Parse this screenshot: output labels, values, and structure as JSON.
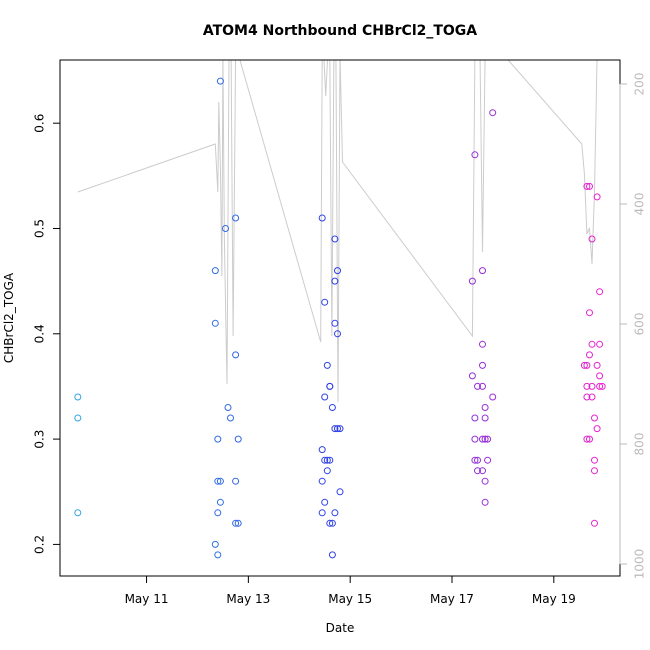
{
  "chart_data": {
    "type": "scatter",
    "title": "ATOM4 Northbound CHBrCl2_TOGA",
    "xlabel": "Date",
    "ylabel": "CHBrCl2_TOGA",
    "x_unit": "day of May",
    "xlim": [
      9.3,
      20.3
    ],
    "ylim": [
      0.17,
      0.66
    ],
    "x_ticks": [
      {
        "value": 11,
        "label": "May 11"
      },
      {
        "value": 13,
        "label": "May 13"
      },
      {
        "value": 15,
        "label": "May 15"
      },
      {
        "value": 17,
        "label": "May 17"
      },
      {
        "value": 19,
        "label": "May 19"
      }
    ],
    "y_ticks": [
      0.2,
      0.3,
      0.4,
      0.5,
      0.6
    ],
    "y_tick_labels": [
      "0.2",
      "0.3",
      "0.4",
      "0.5",
      "0.6"
    ],
    "right_axis": {
      "label_color": "#bbbbbb",
      "reversed": true,
      "ylim": [
        1020,
        160
      ],
      "ticks": [
        200,
        400,
        600,
        800,
        1000
      ],
      "tick_labels": [
        "200",
        "400",
        "600",
        "800",
        "1000"
      ]
    },
    "colors": {
      "early": "#33a6e0",
      "mid": "#2f3ee6",
      "late": "#ee22cc",
      "secondary_line": "#cccccc",
      "axis": "#000000"
    },
    "points": [
      {
        "x": 9.65,
        "y": 0.34
      },
      {
        "x": 9.65,
        "y": 0.32
      },
      {
        "x": 9.65,
        "y": 0.23
      },
      {
        "x": 12.45,
        "y": 0.64
      },
      {
        "x": 12.35,
        "y": 0.46
      },
      {
        "x": 12.35,
        "y": 0.41
      },
      {
        "x": 12.55,
        "y": 0.5
      },
      {
        "x": 12.75,
        "y": 0.51
      },
      {
        "x": 12.75,
        "y": 0.38
      },
      {
        "x": 12.6,
        "y": 0.33
      },
      {
        "x": 12.65,
        "y": 0.32
      },
      {
        "x": 12.4,
        "y": 0.3
      },
      {
        "x": 12.8,
        "y": 0.3
      },
      {
        "x": 12.4,
        "y": 0.26
      },
      {
        "x": 12.45,
        "y": 0.26
      },
      {
        "x": 12.75,
        "y": 0.26
      },
      {
        "x": 12.45,
        "y": 0.24
      },
      {
        "x": 12.4,
        "y": 0.23
      },
      {
        "x": 12.75,
        "y": 0.22
      },
      {
        "x": 12.8,
        "y": 0.22
      },
      {
        "x": 12.35,
        "y": 0.2
      },
      {
        "x": 12.4,
        "y": 0.19
      },
      {
        "x": 14.45,
        "y": 0.51
      },
      {
        "x": 14.7,
        "y": 0.49
      },
      {
        "x": 14.75,
        "y": 0.46
      },
      {
        "x": 14.7,
        "y": 0.45
      },
      {
        "x": 14.5,
        "y": 0.43
      },
      {
        "x": 14.7,
        "y": 0.41
      },
      {
        "x": 14.75,
        "y": 0.4
      },
      {
        "x": 14.55,
        "y": 0.37
      },
      {
        "x": 14.6,
        "y": 0.35
      },
      {
        "x": 14.6,
        "y": 0.35
      },
      {
        "x": 14.5,
        "y": 0.34
      },
      {
        "x": 14.65,
        "y": 0.33
      },
      {
        "x": 14.7,
        "y": 0.31
      },
      {
        "x": 14.75,
        "y": 0.31
      },
      {
        "x": 14.8,
        "y": 0.31
      },
      {
        "x": 14.45,
        "y": 0.29
      },
      {
        "x": 14.5,
        "y": 0.28
      },
      {
        "x": 14.55,
        "y": 0.28
      },
      {
        "x": 14.6,
        "y": 0.28
      },
      {
        "x": 14.55,
        "y": 0.27
      },
      {
        "x": 14.45,
        "y": 0.26
      },
      {
        "x": 14.8,
        "y": 0.25
      },
      {
        "x": 14.5,
        "y": 0.24
      },
      {
        "x": 14.45,
        "y": 0.23
      },
      {
        "x": 14.7,
        "y": 0.23
      },
      {
        "x": 14.6,
        "y": 0.22
      },
      {
        "x": 14.65,
        "y": 0.22
      },
      {
        "x": 14.65,
        "y": 0.19
      },
      {
        "x": 17.45,
        "y": 0.57
      },
      {
        "x": 17.4,
        "y": 0.45
      },
      {
        "x": 17.6,
        "y": 0.46
      },
      {
        "x": 17.6,
        "y": 0.39
      },
      {
        "x": 17.6,
        "y": 0.37
      },
      {
        "x": 17.4,
        "y": 0.36
      },
      {
        "x": 17.5,
        "y": 0.35
      },
      {
        "x": 17.6,
        "y": 0.35
      },
      {
        "x": 17.8,
        "y": 0.34
      },
      {
        "x": 17.65,
        "y": 0.33
      },
      {
        "x": 17.45,
        "y": 0.32
      },
      {
        "x": 17.65,
        "y": 0.32
      },
      {
        "x": 17.45,
        "y": 0.3
      },
      {
        "x": 17.6,
        "y": 0.3
      },
      {
        "x": 17.65,
        "y": 0.3
      },
      {
        "x": 17.7,
        "y": 0.3
      },
      {
        "x": 17.45,
        "y": 0.28
      },
      {
        "x": 17.5,
        "y": 0.28
      },
      {
        "x": 17.7,
        "y": 0.28
      },
      {
        "x": 17.5,
        "y": 0.27
      },
      {
        "x": 17.6,
        "y": 0.27
      },
      {
        "x": 17.65,
        "y": 0.26
      },
      {
        "x": 17.65,
        "y": 0.24
      },
      {
        "x": 17.8,
        "y": 0.61
      },
      {
        "x": 19.65,
        "y": 0.54
      },
      {
        "x": 19.7,
        "y": 0.54
      },
      {
        "x": 19.85,
        "y": 0.53
      },
      {
        "x": 19.75,
        "y": 0.49
      },
      {
        "x": 19.7,
        "y": 0.42
      },
      {
        "x": 19.9,
        "y": 0.44
      },
      {
        "x": 19.75,
        "y": 0.39
      },
      {
        "x": 19.9,
        "y": 0.39
      },
      {
        "x": 19.7,
        "y": 0.38
      },
      {
        "x": 19.6,
        "y": 0.37
      },
      {
        "x": 19.65,
        "y": 0.37
      },
      {
        "x": 19.85,
        "y": 0.37
      },
      {
        "x": 19.9,
        "y": 0.36
      },
      {
        "x": 19.65,
        "y": 0.35
      },
      {
        "x": 19.75,
        "y": 0.35
      },
      {
        "x": 19.9,
        "y": 0.35
      },
      {
        "x": 19.95,
        "y": 0.35
      },
      {
        "x": 19.65,
        "y": 0.34
      },
      {
        "x": 19.75,
        "y": 0.34
      },
      {
        "x": 19.8,
        "y": 0.32
      },
      {
        "x": 19.85,
        "y": 0.31
      },
      {
        "x": 19.65,
        "y": 0.3
      },
      {
        "x": 19.7,
        "y": 0.3
      },
      {
        "x": 19.8,
        "y": 0.28
      },
      {
        "x": 19.8,
        "y": 0.27
      },
      {
        "x": 19.8,
        "y": 0.22
      }
    ],
    "secondary_series": {
      "name": "pressure",
      "color": "#cccccc",
      "x": [
        9.65,
        12.35,
        12.4,
        12.42,
        12.45,
        12.48,
        12.5,
        12.53,
        12.56,
        12.58,
        12.62,
        12.66,
        12.7,
        12.75,
        12.8,
        14.42,
        14.45,
        14.48,
        14.52,
        14.56,
        14.6,
        14.64,
        14.68,
        14.72,
        14.76,
        14.8,
        14.85,
        17.4,
        17.45,
        17.5,
        17.55,
        17.6,
        17.65,
        17.7,
        17.75,
        17.8,
        17.9,
        18.0,
        19.55,
        19.6,
        19.65,
        19.7,
        19.75,
        19.8,
        19.85,
        19.9,
        19.95
      ],
      "y": [
        380,
        300,
        380,
        230,
        340,
        520,
        150,
        460,
        610,
        700,
        150,
        150,
        620,
        150,
        150,
        630,
        150,
        150,
        220,
        150,
        150,
        620,
        150,
        150,
        730,
        150,
        330,
        620,
        150,
        150,
        150,
        480,
        150,
        150,
        150,
        150,
        150,
        150,
        300,
        350,
        450,
        440,
        500,
        380,
        150,
        150,
        150
      ]
    }
  }
}
